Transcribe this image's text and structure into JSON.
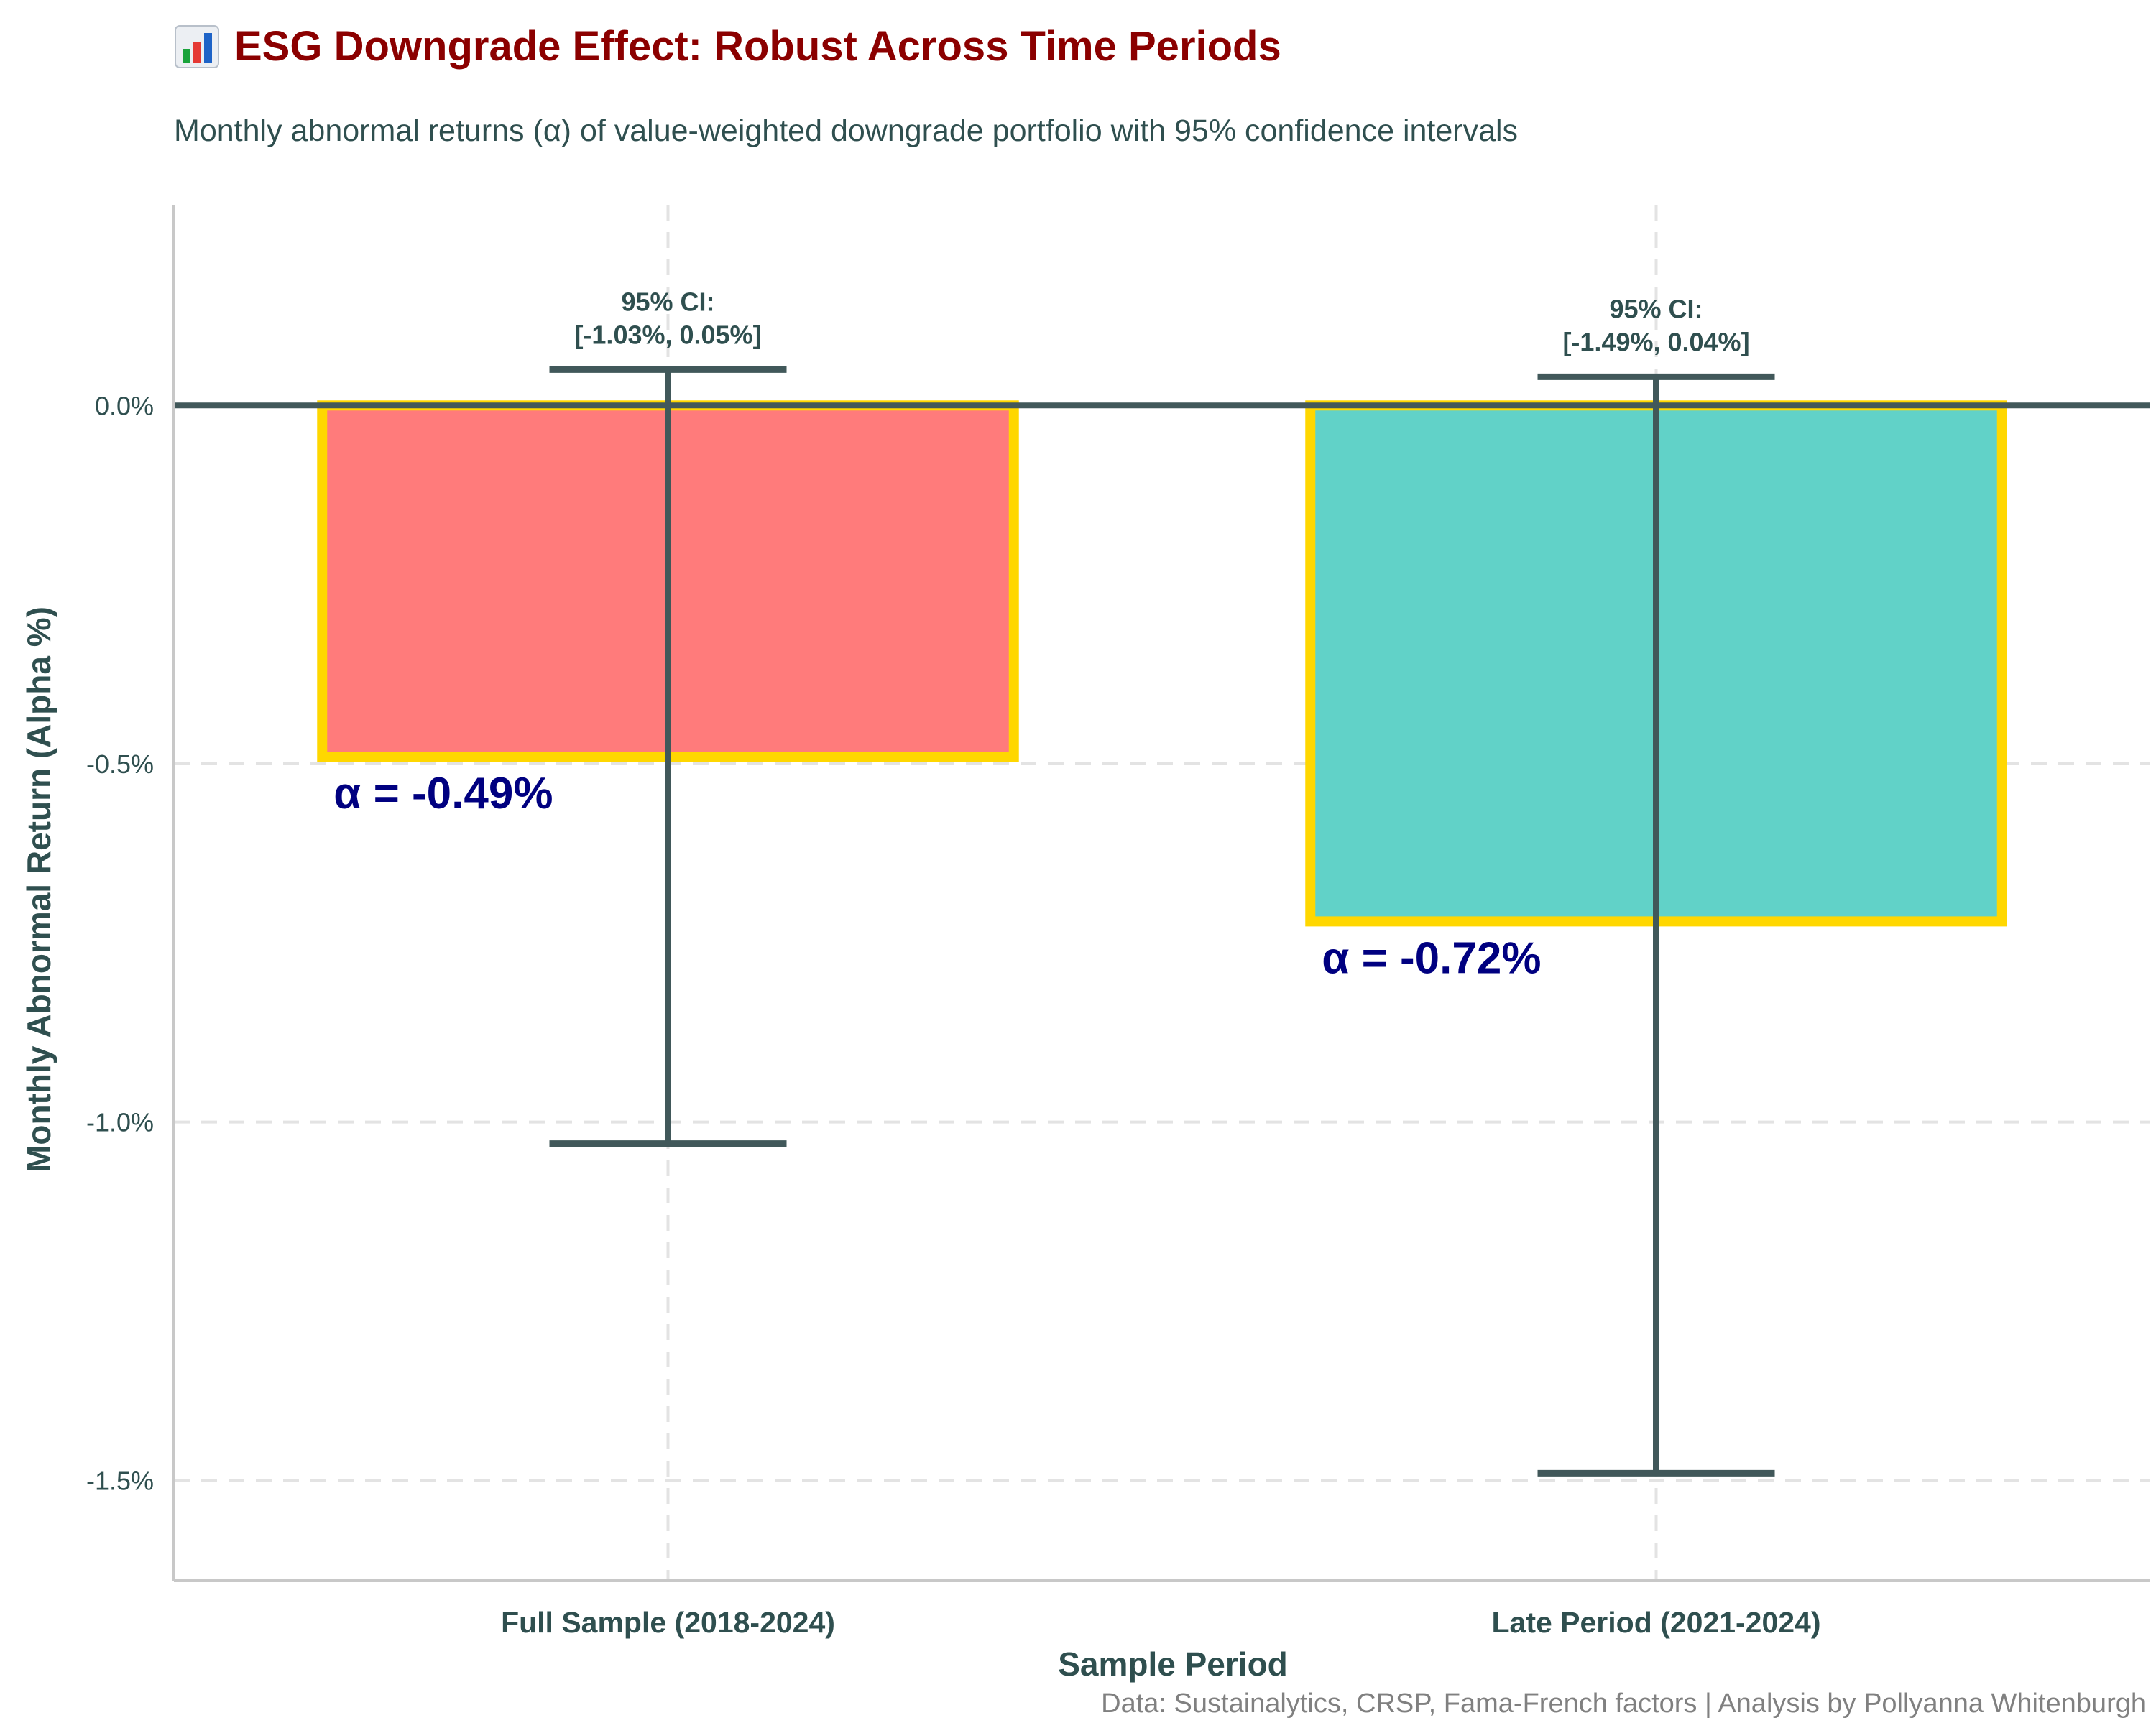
{
  "chart_data": {
    "type": "bar",
    "title": "ESG Downgrade Effect: Robust Across Time Periods",
    "title_icon": "bar-chart-emoji-icon",
    "subtitle": "Monthly abnormal returns (α) of value-weighted downgrade portfolio with 95% confidence intervals",
    "xlabel": "Sample Period",
    "ylabel": "Monthly Abnormal Return (Alpha %)",
    "caption": "Data: Sustainalytics, CRSP, Fama-French factors | Analysis by Pollyanna Whitenburgh",
    "categories": [
      "Full Sample (2018-2024)",
      "Late Period (2021-2024)"
    ],
    "values": [
      -0.49,
      -0.72
    ],
    "ci_lower": [
      -1.03,
      -1.49
    ],
    "ci_upper": [
      0.05,
      0.04
    ],
    "ci_labels": [
      [
        "95% CI:",
        "[-1.03%, 0.05%]"
      ],
      [
        "95% CI:",
        "[-1.49%, 0.04%]"
      ]
    ],
    "value_labels": [
      "α = -0.49%",
      "α = -0.72%"
    ],
    "ylim": [
      -1.64,
      0.28
    ],
    "y_ticks": [
      0.0,
      -0.5,
      -1.0,
      -1.5
    ],
    "y_tick_labels": [
      "0.0%",
      "-0.5%",
      "-1.0%",
      "-1.5%"
    ],
    "grid": true,
    "legend": "none",
    "colors": {
      "bars": [
        "#FF7B7B",
        "#61D2C8"
      ],
      "bar_outline": "#FFD700",
      "error_bar": "#41585A",
      "zero_line": "#41585A",
      "title": "#8B0000",
      "subtitle": "#2F4F4F",
      "axis_text": "#2F4F4F",
      "value_label": "#000080",
      "caption": "#808080",
      "grid": "#E3E3E3",
      "axis_line": "#C8C8C8"
    }
  }
}
